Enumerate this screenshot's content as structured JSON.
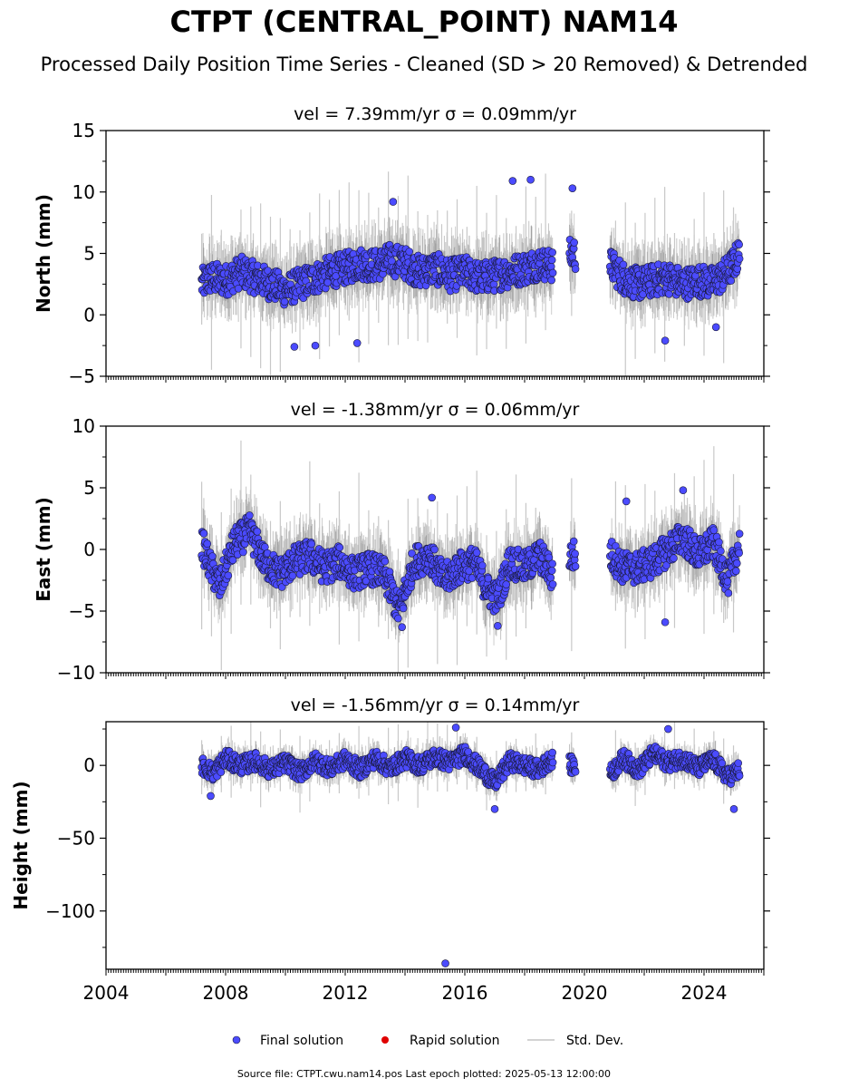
{
  "title": "CTPT (CENTRAL_POINT) NAM14",
  "subtitle": "Processed Daily Position Time Series - Cleaned (SD > 20 Removed) & Detrended",
  "legend": {
    "placement": "bottom-center",
    "items": [
      {
        "label": "Final solution",
        "color": "#4b4bff"
      },
      {
        "label": "Rapid solution",
        "color": "#e00000"
      },
      {
        "label": "Std. Dev.",
        "color": "#d3d3d3"
      }
    ]
  },
  "footer": "Source file: CTPT.cwu.nam14.pos  Last epoch plotted: 2025-05-13 12:00:00",
  "colors": {
    "point": "#4b4bff",
    "point_edge": "#1a1a3a",
    "errorbar": "#c8c8c8",
    "errorbar_dense": "#555555"
  },
  "chart_data": [
    {
      "type": "scatter",
      "component": "North",
      "panel_title": "vel = 7.39mm/yr   σ = 0.09mm/yr",
      "ylabel": "North (mm)",
      "ylim": [
        -5,
        15
      ],
      "yticks": [
        -5,
        0,
        5,
        10,
        15
      ],
      "xlim": [
        2004,
        2026
      ],
      "grid": false,
      "series": [
        {
          "values_summary": "daily points 2007.1–2025.4",
          "x": [
            2007.2,
            2007.5,
            2008.0,
            2008.5,
            2009.0,
            2009.5,
            2010.0,
            2010.5,
            2011.0,
            2011.5,
            2012.0,
            2012.5,
            2013.0,
            2013.5,
            2014.0,
            2014.5,
            2015.0,
            2015.5,
            2016.0,
            2016.5,
            2017.0,
            2017.5,
            2018.0,
            2018.5,
            2018.9,
            2019.6,
            2020.9,
            2021.3,
            2021.8,
            2022.3,
            2022.8,
            2023.3,
            2023.8,
            2024.3,
            2024.8,
            2025.2
          ],
          "y": [
            2.5,
            3.0,
            2.8,
            3.5,
            3.0,
            2.5,
            2.0,
            2.5,
            3.0,
            3.5,
            3.8,
            4.2,
            4.0,
            4.5,
            4.2,
            3.5,
            3.8,
            3.2,
            3.5,
            3.0,
            3.2,
            3.5,
            3.8,
            4.2,
            4.0,
            5.0,
            4.0,
            3.0,
            2.5,
            2.8,
            3.0,
            2.5,
            2.8,
            2.6,
            3.5,
            5.0
          ]
        }
      ],
      "outliers": [
        {
          "x": 2013.6,
          "y": 9.2
        },
        {
          "x": 2017.6,
          "y": 10.9
        },
        {
          "x": 2018.2,
          "y": 11.0
        },
        {
          "x": 2019.6,
          "y": 10.3
        },
        {
          "x": 2010.3,
          "y": -2.6
        },
        {
          "x": 2011.0,
          "y": -2.5
        },
        {
          "x": 2012.4,
          "y": -2.3
        },
        {
          "x": 2022.7,
          "y": -2.1
        },
        {
          "x": 2024.4,
          "y": -1.0
        }
      ]
    },
    {
      "type": "scatter",
      "component": "East",
      "panel_title": "vel = -1.38mm/yr   σ = 0.06mm/yr",
      "ylabel": "East (mm)",
      "ylim": [
        -10,
        10
      ],
      "yticks": [
        -10,
        -5,
        0,
        5,
        10
      ],
      "xlim": [
        2004,
        2026
      ],
      "grid": false,
      "series": [
        {
          "x": [
            2007.2,
            2007.5,
            2007.8,
            2008.3,
            2008.8,
            2009.3,
            2009.8,
            2010.3,
            2010.8,
            2011.3,
            2011.8,
            2012.3,
            2012.8,
            2013.3,
            2013.8,
            2014.3,
            2014.8,
            2015.3,
            2015.8,
            2016.3,
            2016.8,
            2017.1,
            2017.5,
            2018.0,
            2018.5,
            2018.9,
            2019.6,
            2020.9,
            2021.3,
            2021.8,
            2022.3,
            2022.8,
            2023.3,
            2023.8,
            2024.3,
            2024.8,
            2025.2
          ],
          "y": [
            0.5,
            -1.5,
            -3.0,
            0.5,
            1.5,
            -1.0,
            -2.0,
            -1.0,
            -0.5,
            -1.5,
            -1.0,
            -2.0,
            -1.5,
            -2.0,
            -5.0,
            -1.0,
            -0.5,
            -2.5,
            -1.5,
            -1.0,
            -3.5,
            -4.0,
            -1.0,
            -1.5,
            -0.5,
            -2.0,
            -0.5,
            -0.5,
            -1.5,
            -1.5,
            -1.0,
            0.0,
            1.0,
            -0.5,
            0.5,
            -2.5,
            0.5
          ]
        }
      ],
      "outliers": [
        {
          "x": 2023.3,
          "y": 4.8
        },
        {
          "x": 2014.9,
          "y": 4.2
        },
        {
          "x": 2021.4,
          "y": 3.9
        },
        {
          "x": 2022.7,
          "y": -5.9
        },
        {
          "x": 2013.9,
          "y": -6.3
        },
        {
          "x": 2017.1,
          "y": -6.2
        }
      ]
    },
    {
      "type": "scatter",
      "component": "Height",
      "panel_title": "vel = -1.56mm/yr   σ = 0.14mm/yr",
      "ylabel": "Height (mm)",
      "ylim": [
        -140,
        30
      ],
      "yticks": [
        -100,
        -50,
        0
      ],
      "xlim": [
        2004,
        2026
      ],
      "xticks": [
        2004,
        2008,
        2012,
        2016,
        2020,
        2024
      ],
      "grid": false,
      "series": [
        {
          "x": [
            2007.2,
            2007.6,
            2008.0,
            2008.5,
            2009.0,
            2009.5,
            2010.0,
            2010.5,
            2011.0,
            2011.5,
            2012.0,
            2012.5,
            2013.0,
            2013.5,
            2014.0,
            2014.5,
            2015.0,
            2015.5,
            2016.0,
            2016.5,
            2017.0,
            2017.5,
            2018.0,
            2018.5,
            2018.9,
            2019.6,
            2020.9,
            2021.3,
            2021.8,
            2022.3,
            2022.8,
            2023.3,
            2023.8,
            2024.3,
            2024.8,
            2025.2
          ],
          "y": [
            0,
            -5,
            5,
            0,
            3,
            -3,
            2,
            -5,
            3,
            -2,
            4,
            -3,
            5,
            -2,
            5,
            0,
            6,
            2,
            8,
            -2,
            -12,
            3,
            0,
            -3,
            5,
            0,
            -5,
            5,
            -3,
            8,
            2,
            5,
            -2,
            4,
            -8,
            -3
          ]
        }
      ],
      "outliers": [
        {
          "x": 2015.35,
          "y": -136
        },
        {
          "x": 2017.0,
          "y": -30
        },
        {
          "x": 2025.0,
          "y": -30
        },
        {
          "x": 2007.5,
          "y": -21
        },
        {
          "x": 2022.8,
          "y": 25
        },
        {
          "x": 2015.7,
          "y": 26
        }
      ]
    }
  ]
}
